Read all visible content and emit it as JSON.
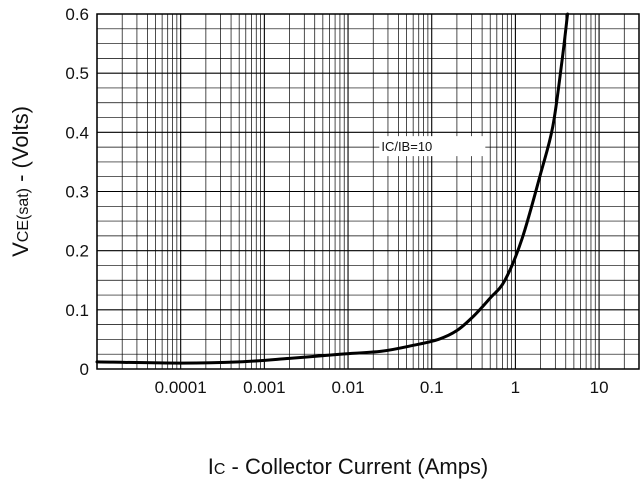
{
  "chart_data": {
    "type": "line",
    "xscale": "log",
    "grid": true,
    "xlim": [
      1e-05,
      30
    ],
    "ylim": [
      0,
      0.6
    ],
    "x_ticks": [
      {
        "value": 0.0001,
        "label": "0.0001"
      },
      {
        "value": 0.001,
        "label": "0.001"
      },
      {
        "value": 0.01,
        "label": "0.01"
      },
      {
        "value": 0.1,
        "label": "0.1"
      },
      {
        "value": 1,
        "label": "1"
      },
      {
        "value": 10,
        "label": "10"
      }
    ],
    "y_ticks": [
      {
        "value": 0,
        "label": "0"
      },
      {
        "value": 0.1,
        "label": "0.1"
      },
      {
        "value": 0.2,
        "label": "0.2"
      },
      {
        "value": 0.3,
        "label": "0.3"
      },
      {
        "value": 0.4,
        "label": "0.4"
      },
      {
        "value": 0.5,
        "label": "0.5"
      },
      {
        "value": 0.6,
        "label": "0.6"
      }
    ],
    "xlabel": {
      "main": "I",
      "sub": "C",
      "rest": " - Collector Current (Amps)"
    },
    "ylabel": {
      "main": "V",
      "sub": "CE(sat)",
      "rest": " - (Volts)"
    },
    "annotation": {
      "text": "IC/IB=10",
      "x": 0.025,
      "y": 0.375
    },
    "series": [
      {
        "color": "#000000",
        "x": [
          1e-05,
          0.0001,
          0.0005,
          0.002,
          0.008,
          0.025,
          0.06,
          0.12,
          0.2,
          0.32,
          0.5,
          0.75,
          1.2,
          2.0,
          2.8,
          3.6,
          4.2
        ],
        "y": [
          0.012,
          0.01,
          0.012,
          0.018,
          0.025,
          0.03,
          0.04,
          0.05,
          0.065,
          0.09,
          0.12,
          0.15,
          0.22,
          0.33,
          0.41,
          0.52,
          0.6
        ]
      }
    ]
  }
}
